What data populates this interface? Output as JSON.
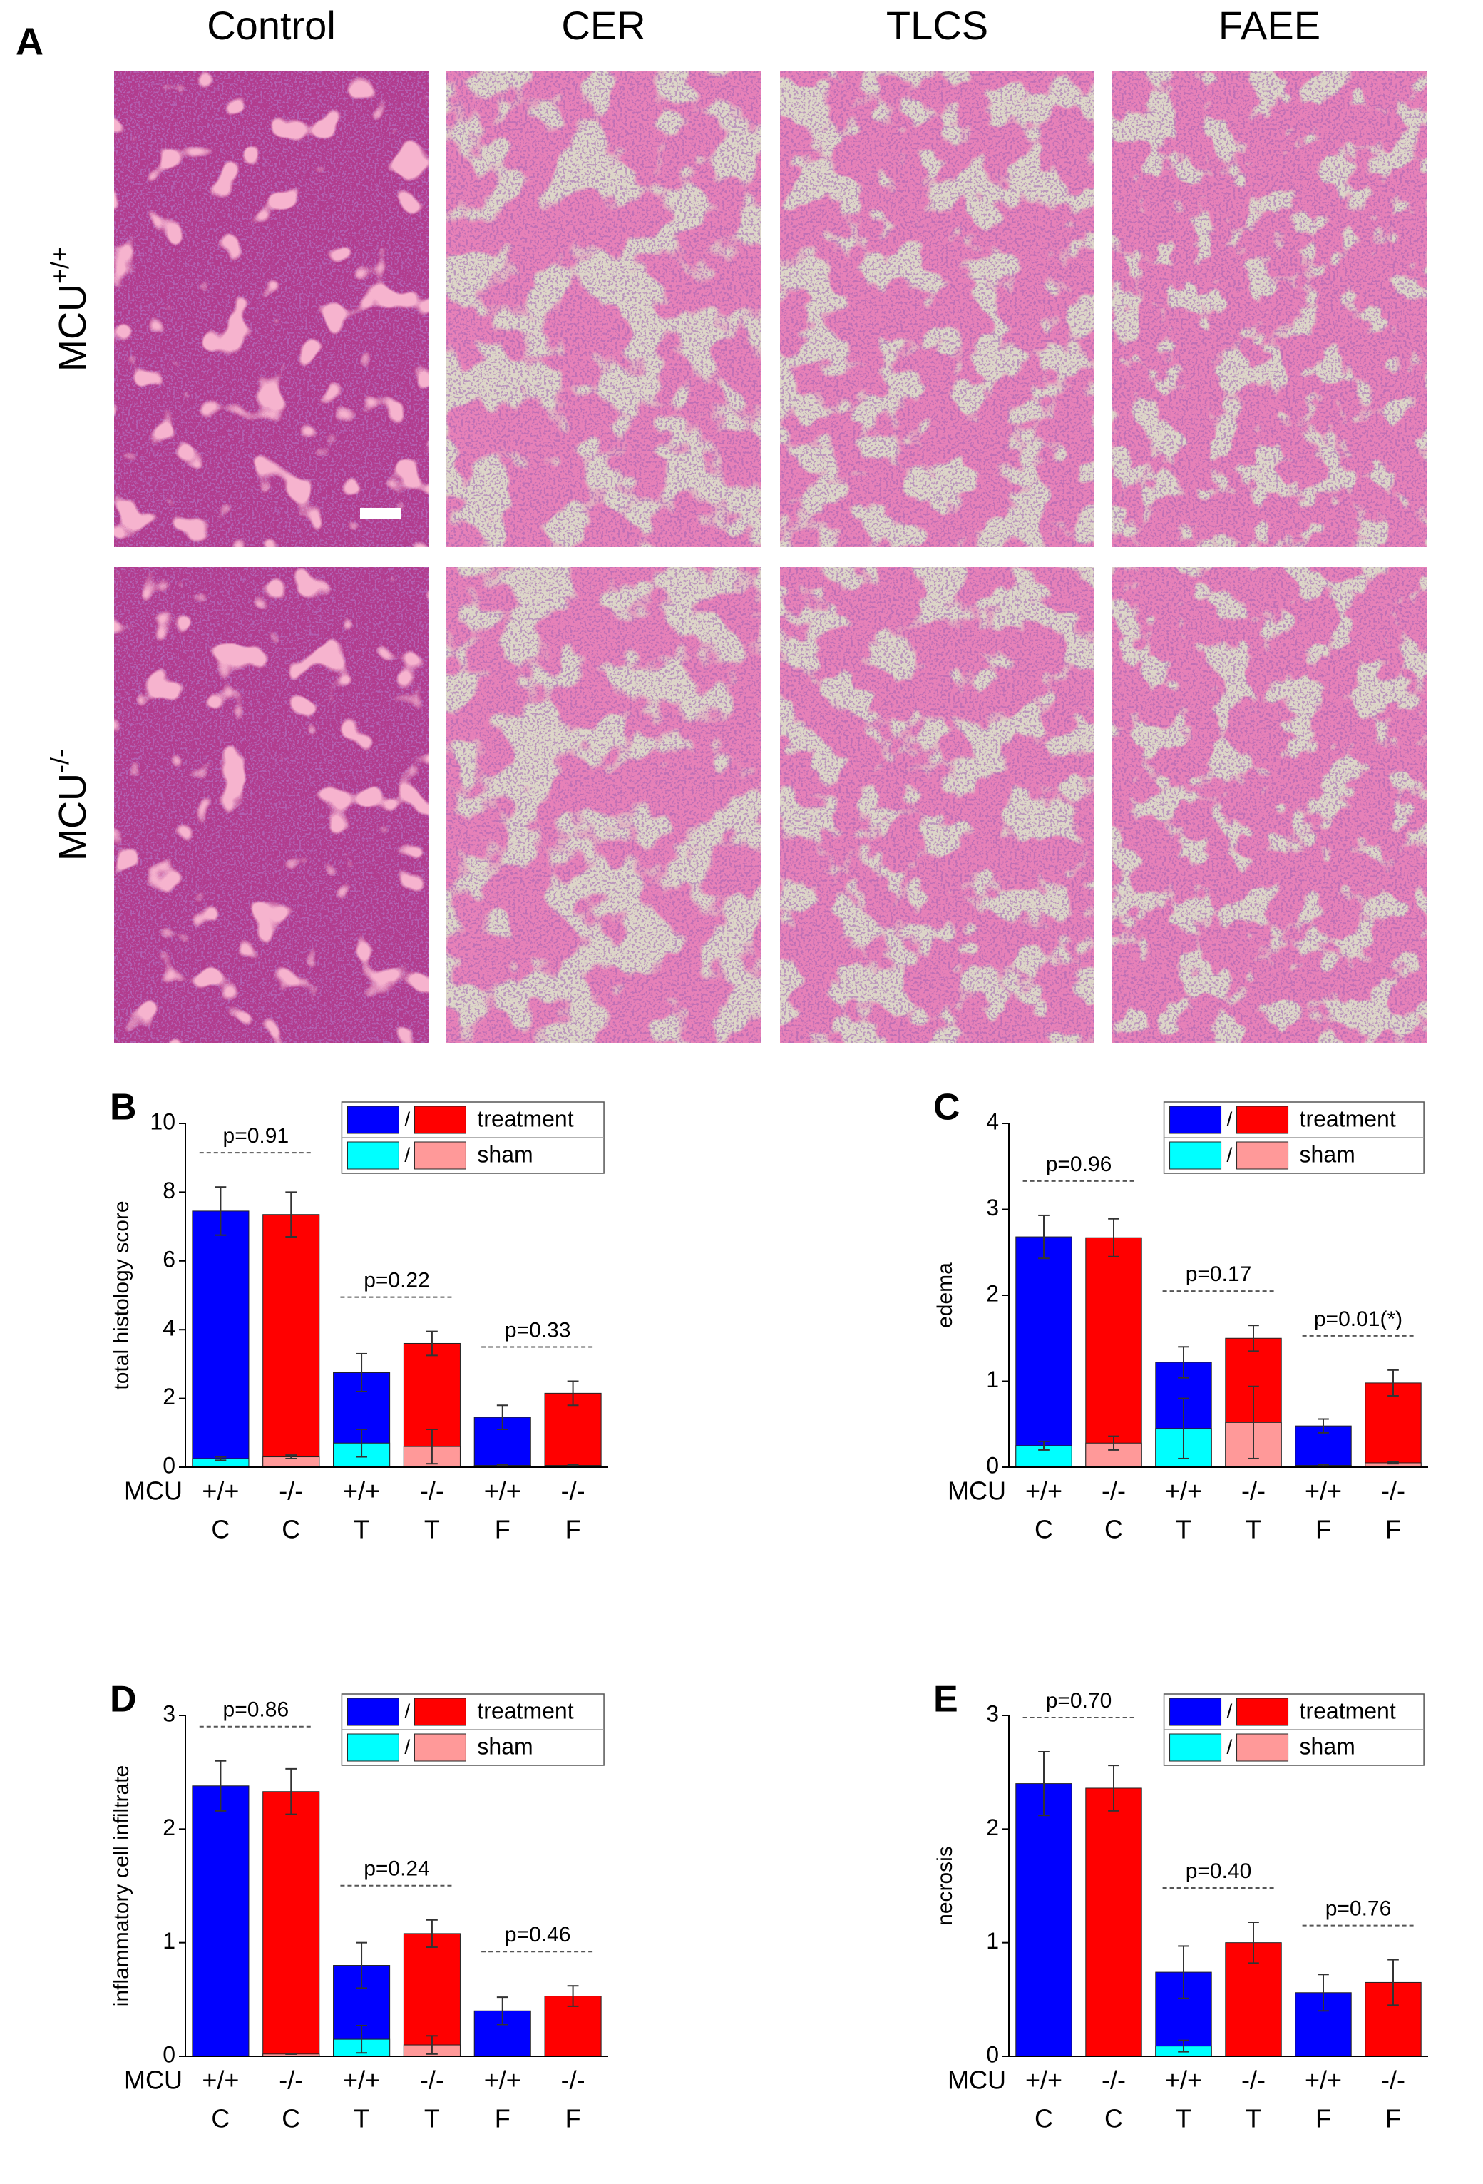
{
  "panel_a": {
    "label": "A",
    "columns": [
      "Control",
      "CER",
      "TLCS",
      "FAEE"
    ],
    "rows": [
      {
        "text": "MCU",
        "sup": "+/+"
      },
      {
        "text": "MCU",
        "sup": "-/-"
      }
    ]
  },
  "chart_data": [
    {
      "type": "bar",
      "label": "B",
      "ylabel": "total histology score",
      "ylim": [
        0,
        10
      ],
      "yticks": [
        0,
        2,
        4,
        6,
        8,
        10
      ],
      "row_label": "MCU",
      "genotypes": [
        "+/+",
        "-/-",
        "+/+",
        "-/-",
        "+/+",
        "-/-"
      ],
      "categories": [
        "C",
        "C",
        "T",
        "T",
        "F",
        "F"
      ],
      "legend_separator": "/",
      "series": [
        {
          "name": "treatment",
          "colors": [
            "#0000ff",
            "#ff0000"
          ],
          "values": [
            7.45,
            7.35,
            2.75,
            3.6,
            1.45,
            2.15
          ],
          "errors": [
            0.7,
            0.65,
            0.55,
            0.35,
            0.35,
            0.35
          ]
        },
        {
          "name": "sham",
          "colors": [
            "#00ffff",
            "#ff9999"
          ],
          "values": [
            0.25,
            0.3,
            0.7,
            0.6,
            0.05,
            0.05
          ],
          "errors": [
            0.05,
            0.05,
            0.4,
            0.5,
            0.02,
            0.02
          ]
        }
      ],
      "annotations": [
        "p=0.91",
        null,
        "p=0.22",
        null,
        "p=0.33",
        null
      ]
    },
    {
      "type": "bar",
      "label": "C",
      "ylabel": "edema",
      "ylim": [
        0,
        4
      ],
      "yticks": [
        0,
        1,
        2,
        3,
        4
      ],
      "row_label": "MCU",
      "genotypes": [
        "+/+",
        "-/-",
        "+/+",
        "-/-",
        "+/+",
        "-/-"
      ],
      "categories": [
        "C",
        "C",
        "T",
        "T",
        "F",
        "F"
      ],
      "legend_separator": "/",
      "series": [
        {
          "name": "treatment",
          "colors": [
            "#0000ff",
            "#ff0000"
          ],
          "values": [
            2.68,
            2.67,
            1.22,
            1.5,
            0.48,
            0.98
          ],
          "errors": [
            0.25,
            0.22,
            0.18,
            0.15,
            0.08,
            0.15
          ]
        },
        {
          "name": "sham",
          "colors": [
            "#00ffff",
            "#ff9999"
          ],
          "values": [
            0.25,
            0.28,
            0.45,
            0.52,
            0.02,
            0.05
          ],
          "errors": [
            0.05,
            0.08,
            0.35,
            0.42,
            0.01,
            0.01
          ]
        }
      ],
      "annotations": [
        "p=0.96",
        null,
        "p=0.17",
        null,
        "p=0.01(*)",
        null
      ]
    },
    {
      "type": "bar",
      "label": "D",
      "ylabel": "inflammatory cell infiltrate",
      "ylim": [
        0,
        3
      ],
      "yticks": [
        0,
        1,
        2,
        3
      ],
      "row_label": "MCU",
      "genotypes": [
        "+/+",
        "-/-",
        "+/+",
        "-/-",
        "+/+",
        "-/-"
      ],
      "categories": [
        "C",
        "C",
        "T",
        "T",
        "F",
        "F"
      ],
      "legend_separator": "/",
      "series": [
        {
          "name": "treatment",
          "colors": [
            "#0000ff",
            "#ff0000"
          ],
          "values": [
            2.38,
            2.33,
            0.8,
            1.08,
            0.4,
            0.53
          ],
          "errors": [
            0.22,
            0.2,
            0.2,
            0.12,
            0.12,
            0.09
          ]
        },
        {
          "name": "sham",
          "colors": [
            "#00ffff",
            "#ff9999"
          ],
          "values": [
            0,
            0.02,
            0.15,
            0.1,
            0,
            0
          ],
          "errors": [
            0,
            0,
            0.12,
            0.08,
            0,
            0
          ]
        }
      ],
      "annotations": [
        "p=0.86",
        null,
        "p=0.24",
        null,
        "p=0.46",
        null
      ]
    },
    {
      "type": "bar",
      "label": "E",
      "ylabel": "necrosis",
      "ylim": [
        0,
        3
      ],
      "yticks": [
        0,
        1,
        2,
        3
      ],
      "row_label": "MCU",
      "genotypes": [
        "+/+",
        "-/-",
        "+/+",
        "-/-",
        "+/+",
        "-/-"
      ],
      "categories": [
        "C",
        "C",
        "T",
        "T",
        "F",
        "F"
      ],
      "legend_separator": "/",
      "series": [
        {
          "name": "treatment",
          "colors": [
            "#0000ff",
            "#ff0000"
          ],
          "values": [
            2.4,
            2.36,
            0.74,
            1.0,
            0.56,
            0.65
          ],
          "errors": [
            0.28,
            0.2,
            0.23,
            0.18,
            0.16,
            0.2
          ]
        },
        {
          "name": "sham",
          "colors": [
            "#00ffff",
            "#ff9999"
          ],
          "values": [
            0,
            0,
            0.09,
            0,
            0,
            0
          ],
          "errors": [
            0,
            0,
            0.05,
            0,
            0,
            0
          ]
        }
      ],
      "annotations": [
        "p=0.70",
        null,
        "p=0.40",
        null,
        "p=0.76",
        null
      ]
    }
  ]
}
